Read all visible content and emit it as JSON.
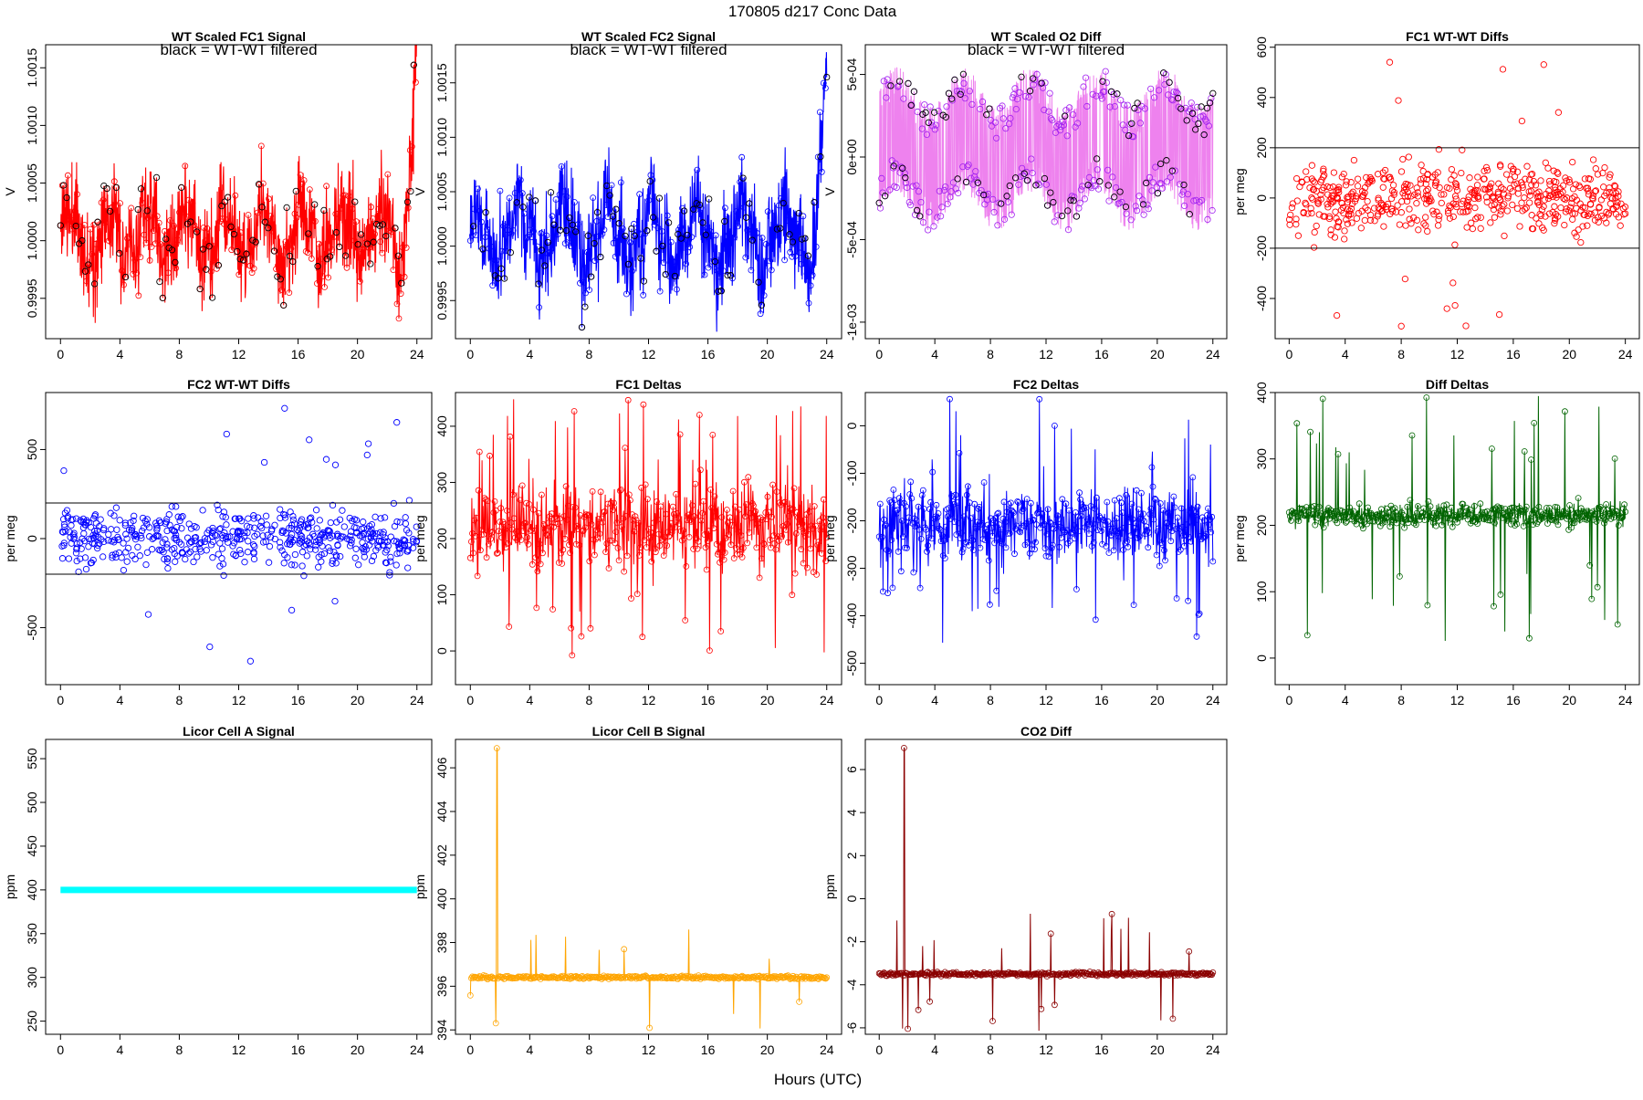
{
  "page": {
    "title": "170805    d217    Conc Data",
    "xlabel": "Hours (UTC)",
    "filtered_note": "black = WT-WT filtered"
  },
  "chart_data": [
    {
      "id": "fc1sig",
      "type": "line",
      "title": "WT Scaled FC1 Signal",
      "ylabel": "V",
      "color": "#ff0000",
      "ylim": [
        0.99915,
        1.0017
      ],
      "yticks": [
        0.9995,
        1.0,
        1.0005,
        1.001,
        1.0015
      ],
      "ytick_labels": [
        "0.9995",
        "1.0000",
        "1.0005",
        "1.0010",
        "1.0015"
      ],
      "xlim": [
        -1,
        25
      ],
      "xticks": [
        0,
        4,
        8,
        12,
        16,
        20,
        24
      ],
      "note": true,
      "filtered_points": true,
      "gen": "fc1sig"
    },
    {
      "id": "fc2sig",
      "type": "line",
      "title": "WT Scaled FC2 Signal",
      "ylabel": "V",
      "color": "#0000ff",
      "ylim": [
        0.99915,
        1.00185
      ],
      "yticks": [
        0.9995,
        1.0,
        1.0005,
        1.001,
        1.0015
      ],
      "ytick_labels": [
        "0.9995",
        "1.0000",
        "1.0005",
        "1.0010",
        "1.0015"
      ],
      "xlim": [
        -1,
        25
      ],
      "xticks": [
        0,
        4,
        8,
        12,
        16,
        20,
        24
      ],
      "note": true,
      "filtered_points": true,
      "gen": "fc2sig"
    },
    {
      "id": "o2diff",
      "type": "line",
      "title": "WT Scaled O2 Diff",
      "ylabel": "V",
      "color": "#ee82ee",
      "point_color": "#a020f0",
      "ylim": [
        -0.0011,
        0.00068
      ],
      "yticks": [
        -0.001,
        -0.0005,
        0,
        0.0005
      ],
      "ytick_labels": [
        "-1e-03",
        "-5e-04",
        "0e+00",
        "5e-04"
      ],
      "xlim": [
        -1,
        25
      ],
      "xticks": [
        0,
        4,
        8,
        12,
        16,
        20,
        24
      ],
      "note": true,
      "filtered_points": true,
      "gen": "o2diff"
    },
    {
      "id": "fc1wt",
      "type": "scatter",
      "title": "FC1 WT-WT Diffs",
      "ylabel": "per meg",
      "color": "#ff0000",
      "ylim": [
        -560,
        610
      ],
      "yticks": [
        -400,
        -200,
        0,
        200,
        400,
        600
      ],
      "ytick_labels": [
        "-400",
        "-200",
        "0",
        "200",
        "400",
        "600"
      ],
      "hlines": [
        200,
        -200
      ],
      "xlim": [
        -1,
        25
      ],
      "xticks": [
        0,
        4,
        8,
        12,
        16,
        20,
        24
      ],
      "gen": "fc1wt"
    },
    {
      "id": "fc2wt",
      "type": "scatter",
      "title": "FC2 WT-WT Diffs",
      "ylabel": "per meg",
      "color": "#0000ff",
      "ylim": [
        -820,
        820
      ],
      "yticks": [
        -500,
        0,
        500
      ],
      "ytick_labels": [
        "-500",
        "0",
        "500"
      ],
      "hlines": [
        200,
        -200
      ],
      "xlim": [
        -1,
        25
      ],
      "xticks": [
        0,
        4,
        8,
        12,
        16,
        20,
        24
      ],
      "gen": "fc2wt"
    },
    {
      "id": "fc1d",
      "type": "line",
      "title": "FC1 Deltas",
      "ylabel": "per meg",
      "color": "#ff0000",
      "ylim": [
        -60,
        460
      ],
      "yticks": [
        0,
        100,
        200,
        300,
        400
      ],
      "ytick_labels": [
        "0",
        "100",
        "200",
        "300",
        "400"
      ],
      "xlim": [
        -1,
        25
      ],
      "xticks": [
        0,
        4,
        8,
        12,
        16,
        20,
        24
      ],
      "gen": "fc1d"
    },
    {
      "id": "fc2d",
      "type": "line",
      "title": "FC2 Deltas",
      "ylabel": "per meg",
      "color": "#0000ff",
      "ylim": [
        -545,
        70
      ],
      "yticks": [
        -500,
        -400,
        -300,
        -200,
        -100,
        0
      ],
      "ytick_labels": [
        "-500",
        "-400",
        "-300",
        "-200",
        "-100",
        "0"
      ],
      "xlim": [
        -1,
        25
      ],
      "xticks": [
        0,
        4,
        8,
        12,
        16,
        20,
        24
      ],
      "gen": "fc2d"
    },
    {
      "id": "dd",
      "type": "line",
      "title": "Diff Deltas",
      "ylabel": "per meg",
      "color": "#006400",
      "ylim": [
        -40,
        400
      ],
      "yticks": [
        0,
        100,
        200,
        300,
        400
      ],
      "ytick_labels": [
        "0",
        "100",
        "200",
        "300",
        "400"
      ],
      "xlim": [
        -1,
        25
      ],
      "xticks": [
        0,
        4,
        8,
        12,
        16,
        20,
        24
      ],
      "gen": "dd"
    },
    {
      "id": "licA",
      "type": "line",
      "title": "Licor Cell A Signal",
      "ylabel": "ppm",
      "color": "#00ffff",
      "ylim": [
        235,
        572
      ],
      "yticks": [
        250,
        300,
        350,
        400,
        450,
        500,
        550
      ],
      "ytick_labels": [
        "250",
        "300",
        "350",
        "400",
        "450",
        "500",
        "550"
      ],
      "xlim": [
        -1,
        25
      ],
      "xticks": [
        0,
        4,
        8,
        12,
        16,
        20,
        24
      ],
      "gen": "licA"
    },
    {
      "id": "licB",
      "type": "line",
      "title": "Licor Cell B Signal",
      "ylabel": "ppm",
      "color": "#ffa500",
      "ylim": [
        393.8,
        407.3
      ],
      "yticks": [
        394,
        396,
        398,
        400,
        402,
        404,
        406
      ],
      "ytick_labels": [
        "394",
        "396",
        "398",
        "400",
        "402",
        "404",
        "406"
      ],
      "xlim": [
        -1,
        25
      ],
      "xticks": [
        0,
        4,
        8,
        12,
        16,
        20,
        24
      ],
      "gen": "licB"
    },
    {
      "id": "co2",
      "type": "line",
      "title": "CO2 Diff",
      "ylabel": "ppm",
      "color": "#8b0000",
      "ylim": [
        -6.3,
        7.4
      ],
      "yticks": [
        -6,
        -4,
        -2,
        0,
        2,
        4,
        6
      ],
      "ytick_labels": [
        "-6",
        "-4",
        "-2",
        "0",
        "2",
        "4",
        "6"
      ],
      "xlim": [
        -1,
        25
      ],
      "xticks": [
        0,
        4,
        8,
        12,
        16,
        20,
        24
      ],
      "gen": "co2"
    }
  ]
}
